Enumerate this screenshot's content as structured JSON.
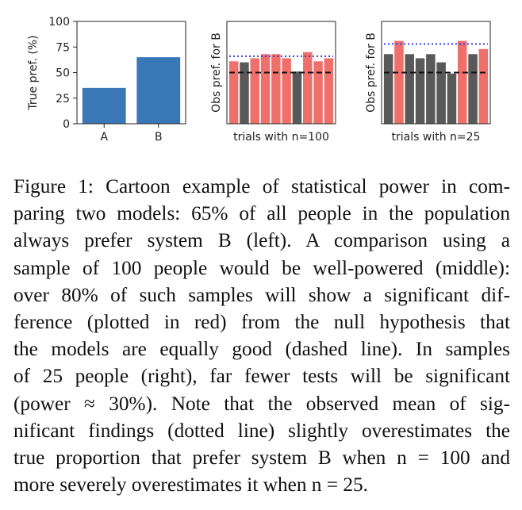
{
  "figure": {
    "chart_data": [
      {
        "type": "bar",
        "categories": [
          "A",
          "B"
        ],
        "values": [
          35,
          65
        ],
        "xlabel": "",
        "ylabel": "True pref. (%)",
        "ylim": [
          0,
          100
        ],
        "yticks": [
          "0",
          "25",
          "50",
          "75",
          "100"
        ],
        "bar_color": "#3a77b6",
        "grid": false
      },
      {
        "type": "bar",
        "xlabel": "trials with n=100",
        "ylabel": "Obs pref. for B",
        "ylim": [
          0,
          100
        ],
        "values": [
          61,
          60,
          64,
          68,
          68,
          64,
          51,
          70,
          61,
          64
        ],
        "significant": [
          true,
          false,
          true,
          true,
          true,
          true,
          false,
          true,
          true,
          true
        ],
        "null_line": 50,
        "significant_mean_line": 66,
        "significant_color": "#ef706b",
        "nonsignificant_color": "#595959",
        "null_line_style": "dashed",
        "mean_line_style": "dotted",
        "mean_line_color": "#3a3ae8",
        "grid": false
      },
      {
        "type": "bar",
        "xlabel": "trials with n=25",
        "ylabel": "Obs pref. for B",
        "ylim": [
          0,
          100
        ],
        "values": [
          68,
          81,
          68,
          64,
          68,
          60,
          49,
          81,
          68,
          73
        ],
        "significant": [
          false,
          true,
          false,
          false,
          false,
          false,
          false,
          true,
          false,
          true
        ],
        "null_line": 50,
        "significant_mean_line": 78,
        "significant_color": "#ef706b",
        "nonsignificant_color": "#595959",
        "null_line_style": "dashed",
        "mean_line_style": "dotted",
        "mean_line_color": "#3a3ae8",
        "grid": false
      }
    ]
  },
  "caption": {
    "lines": [
      "Figure 1: Cartoon example of statistical power in com-",
      "paring two models: 65% of all people in the population",
      "always prefer system B (left).  A comparison using a",
      "sample of 100 people would be well-powered (middle):",
      "over 80% of such samples will show a significant dif-",
      "ference (plotted in red) from the null hypothesis that",
      "the models are equally good (dashed line). In samples",
      "of 25 people (right), far fewer tests will be significant",
      "(power ≈ 30%).  Note that the observed mean of sig-",
      "nificant findings (dotted line) slightly overestimates the",
      "true proportion that prefer system B when n = 100 and",
      "more severely overestimates it when n = 25."
    ]
  }
}
